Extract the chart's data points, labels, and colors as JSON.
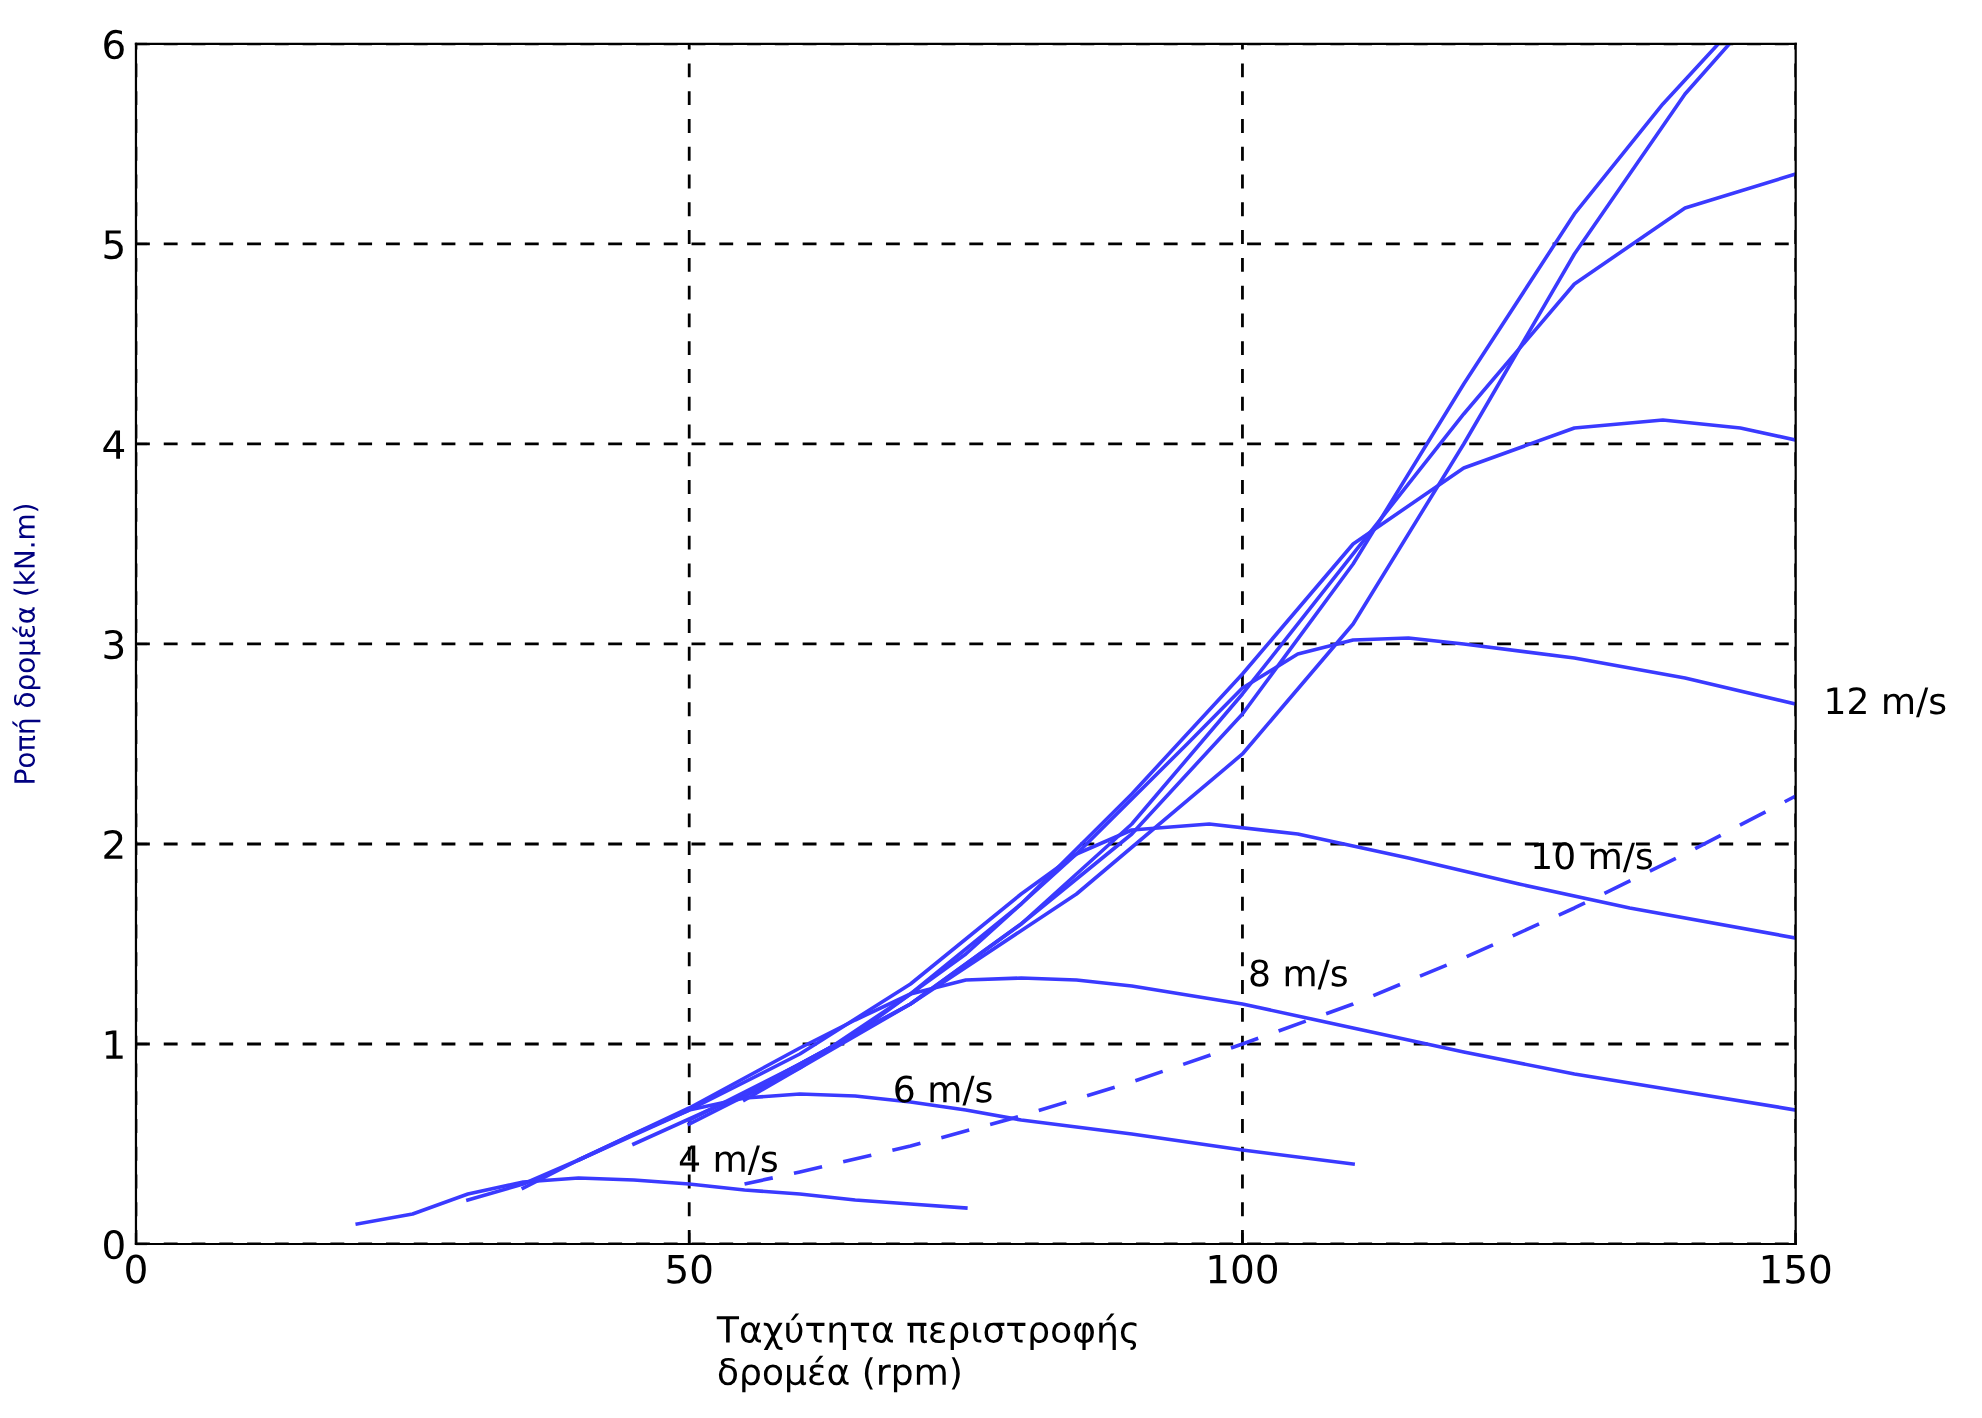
{
  "chart_data": {
    "type": "line",
    "xlabel": "Ταχύτητα περιστροφής\nδρομέα (rpm)",
    "ylabel": "Ροπή δρομέα (kN.m)",
    "xlim": [
      0,
      150
    ],
    "ylim": [
      0,
      6
    ],
    "xticks": [
      0,
      50,
      100,
      150
    ],
    "yticks": [
      0,
      1,
      2,
      3,
      4,
      5,
      6
    ],
    "grid": true,
    "marker": "none",
    "line_style": "solid",
    "series": [
      {
        "name": "4 m/s",
        "color": "#3a3aff",
        "x": [
          20,
          25,
          30,
          35,
          40,
          45,
          50,
          55,
          60,
          65,
          70,
          75
        ],
        "values": [
          0.1,
          0.15,
          0.25,
          0.31,
          0.33,
          0.32,
          0.3,
          0.27,
          0.25,
          0.22,
          0.2,
          0.18
        ]
      },
      {
        "name": "6 m/s",
        "color": "#3a3aff",
        "x": [
          30,
          35,
          40,
          45,
          50,
          55,
          60,
          65,
          70,
          75,
          80,
          90,
          100,
          110
        ],
        "values": [
          0.22,
          0.3,
          0.42,
          0.55,
          0.67,
          0.73,
          0.75,
          0.74,
          0.71,
          0.67,
          0.62,
          0.55,
          0.47,
          0.4
        ]
      },
      {
        "name": "8 m/s",
        "color": "#3a3aff",
        "x": [
          35,
          40,
          50,
          60,
          65,
          70,
          75,
          80,
          85,
          90,
          100,
          110,
          120,
          130,
          140,
          150
        ],
        "values": [
          0.28,
          0.42,
          0.68,
          0.98,
          1.12,
          1.25,
          1.32,
          1.33,
          1.32,
          1.29,
          1.2,
          1.08,
          0.96,
          0.85,
          0.76,
          0.67
        ]
      },
      {
        "name": "10 m/s",
        "color": "#3a3aff",
        "x": [
          40,
          50,
          60,
          70,
          80,
          85,
          90,
          97,
          105,
          115,
          125,
          135,
          150
        ],
        "values": [
          0.42,
          0.67,
          0.95,
          1.3,
          1.75,
          1.95,
          2.07,
          2.1,
          2.05,
          1.93,
          1.8,
          1.68,
          1.53
        ]
      },
      {
        "name": "12 m/s",
        "color": "#3a3aff",
        "x": [
          45,
          55,
          65,
          75,
          85,
          95,
          100,
          105,
          110,
          115,
          120,
          130,
          140,
          150
        ],
        "values": [
          0.5,
          0.75,
          1.05,
          1.45,
          1.95,
          2.5,
          2.78,
          2.95,
          3.02,
          3.03,
          3.0,
          2.93,
          2.83,
          2.7
        ]
      },
      {
        "color": "#3a3aff",
        "x": [
          50,
          60,
          70,
          80,
          90,
          100,
          110,
          120,
          130,
          138,
          145,
          150
        ],
        "values": [
          0.6,
          0.88,
          1.25,
          1.7,
          2.25,
          2.85,
          3.5,
          3.88,
          4.08,
          4.12,
          4.08,
          4.02
        ]
      },
      {
        "color": "#3a3aff",
        "x": [
          50,
          60,
          70,
          80,
          90,
          100,
          110,
          120,
          130,
          140,
          150
        ],
        "values": [
          0.62,
          0.9,
          1.2,
          1.6,
          2.1,
          2.75,
          3.45,
          4.15,
          4.8,
          5.18,
          5.35
        ]
      },
      {
        "color": "#3a3aff",
        "x": [
          55,
          70,
          80,
          90,
          100,
          110,
          120,
          130,
          138,
          143
        ],
        "values": [
          0.72,
          1.2,
          1.6,
          2.05,
          2.65,
          3.4,
          4.3,
          5.15,
          5.7,
          6.0
        ]
      },
      {
        "color": "#3a3aff",
        "x": [
          55,
          70,
          85,
          100,
          110,
          120,
          130,
          140,
          144
        ],
        "values": [
          0.75,
          1.2,
          1.75,
          2.45,
          3.1,
          4.0,
          4.95,
          5.75,
          6.0
        ]
      },
      {
        "color": "#3a3aff",
        "line_style": "dashed",
        "x": [
          55,
          60,
          70,
          80,
          90,
          100,
          110,
          120,
          130,
          140,
          150
        ],
        "values": [
          0.3,
          0.36,
          0.49,
          0.64,
          0.81,
          1.0,
          1.2,
          1.43,
          1.68,
          1.95,
          2.24
        ]
      }
    ]
  }
}
